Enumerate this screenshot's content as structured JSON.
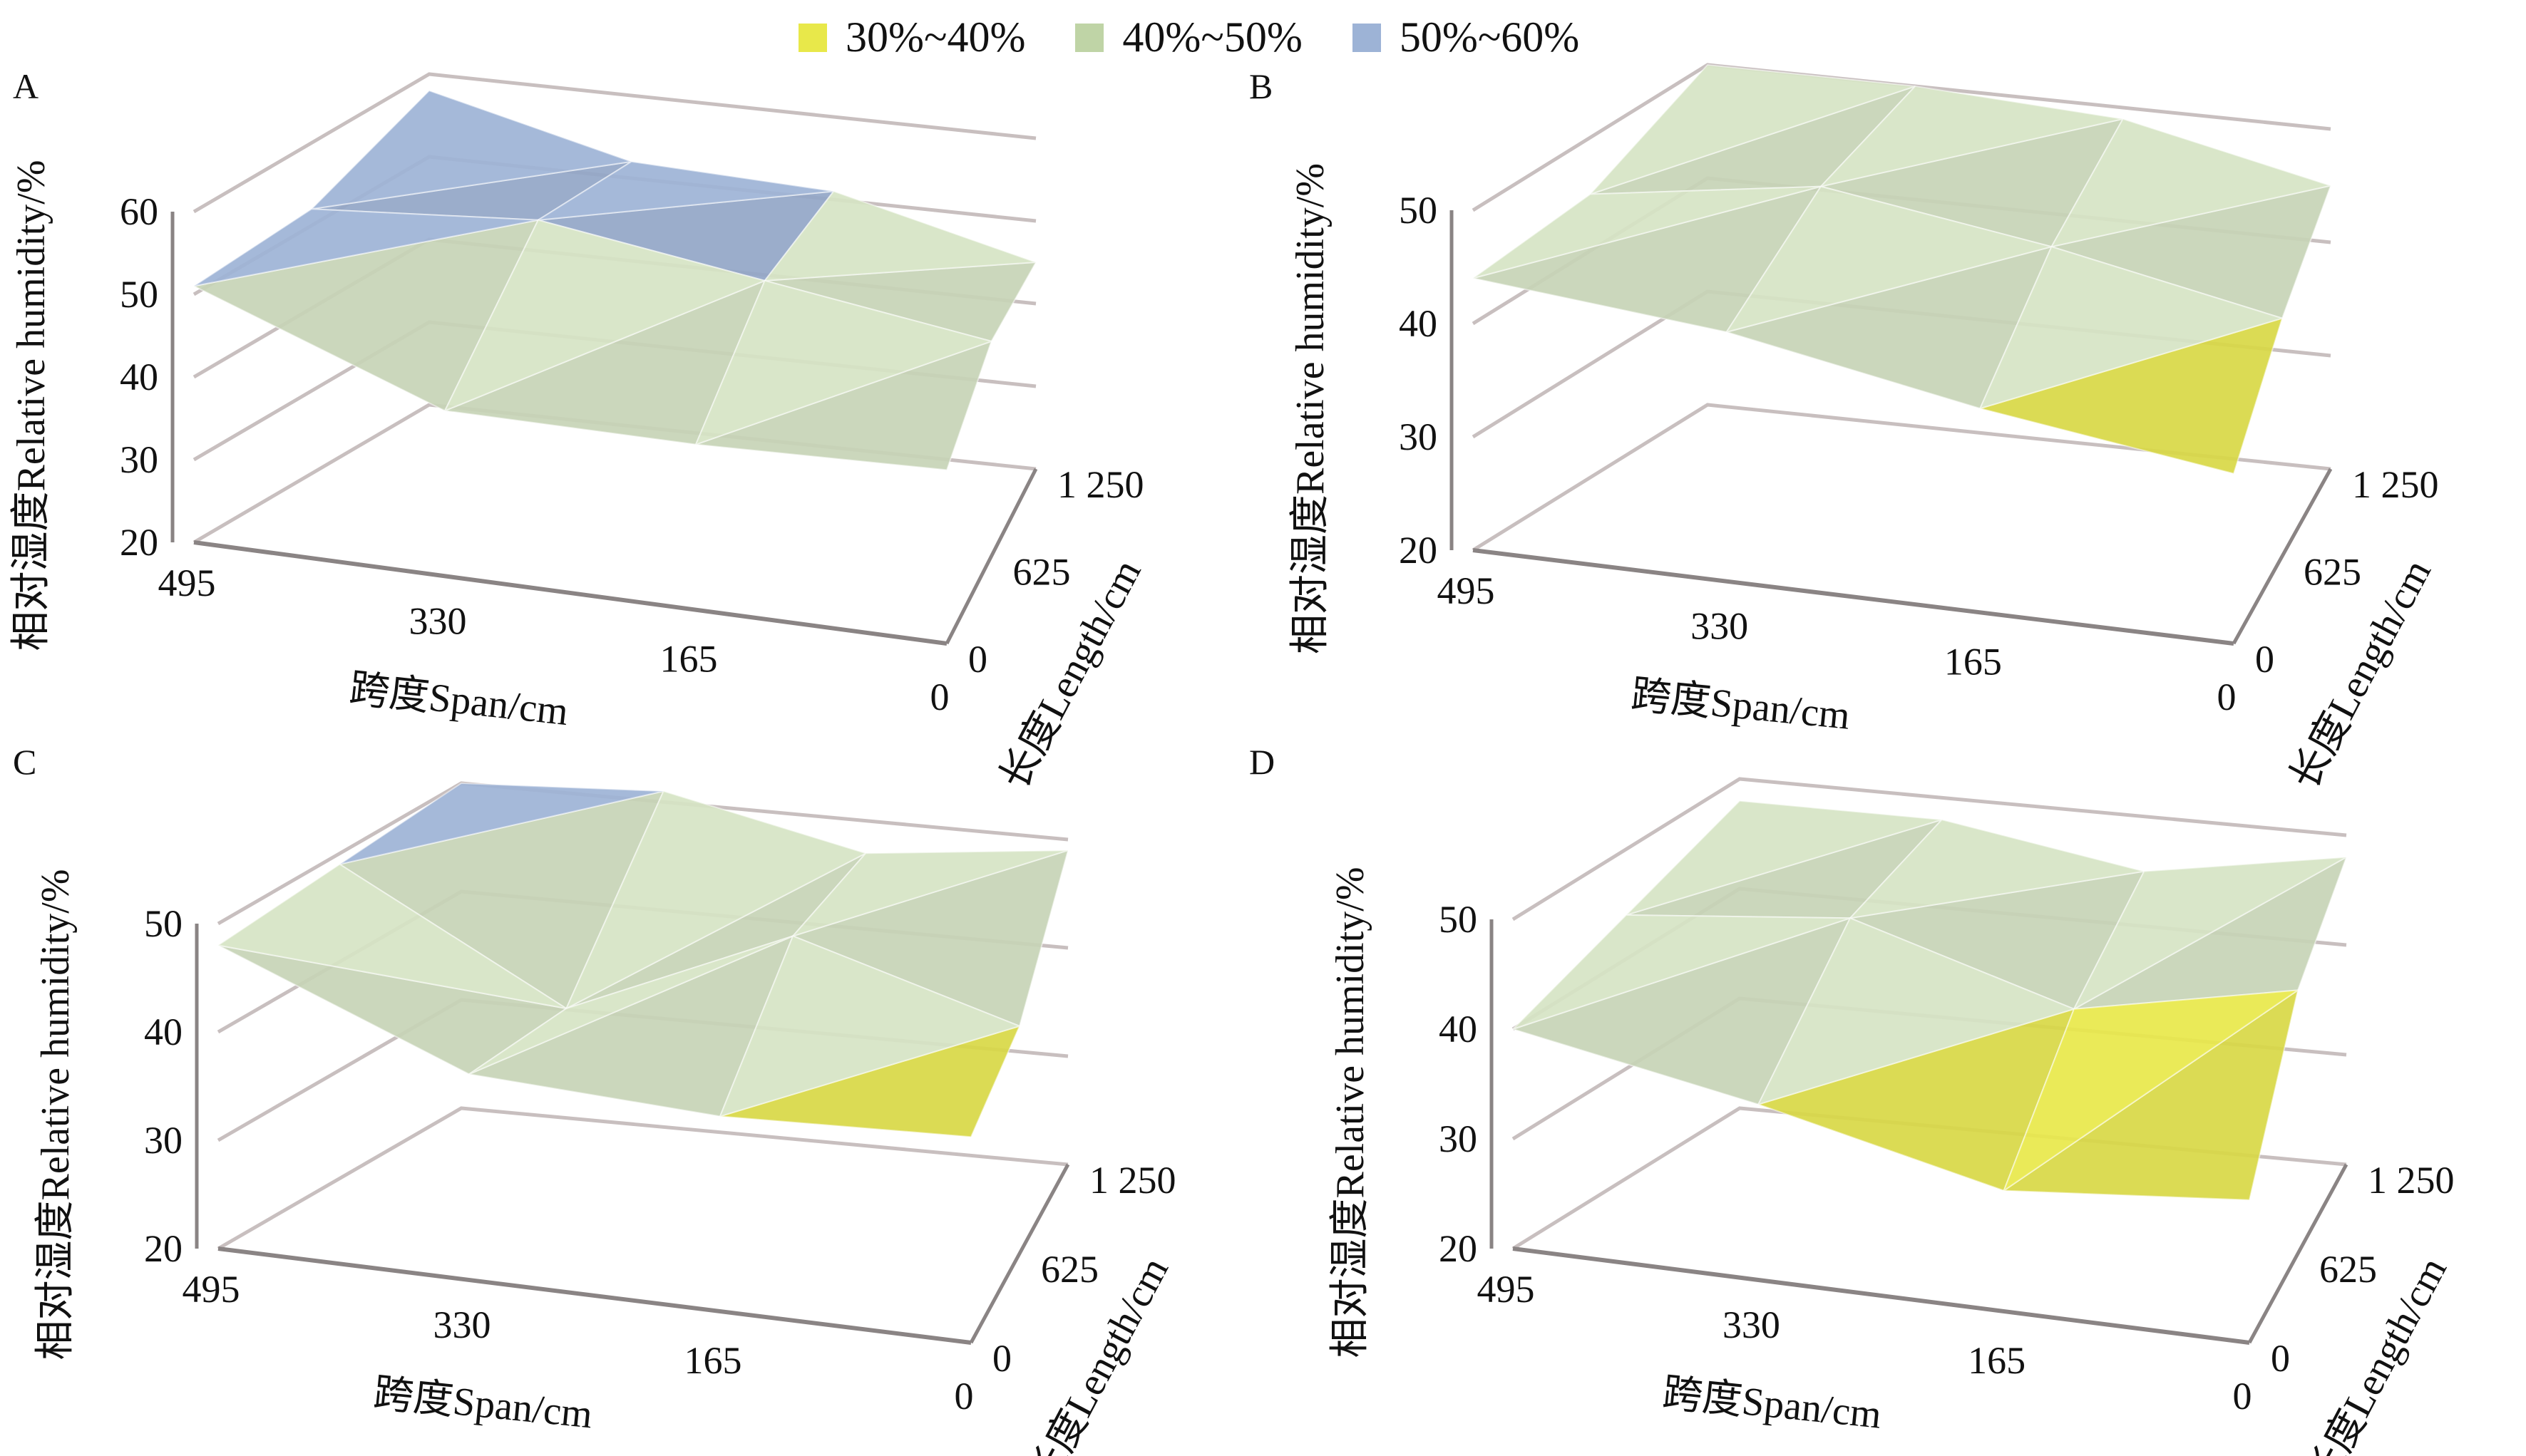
{
  "legend": [
    {
      "label": "30%~40%",
      "color": "#E8E84A",
      "min": 30,
      "max": 40
    },
    {
      "label": "40%~50%",
      "color": "#BFD4A6",
      "min": 40,
      "max": 50
    },
    {
      "label": "50%~60%",
      "color": "#9DB3D6",
      "min": 50,
      "max": 60
    }
  ],
  "chart_data": [
    {
      "panel": "A",
      "type": "surface3d",
      "title": "",
      "xlabel": "跨度Span/cm",
      "ylabel": "长度Length/cm",
      "zlabel": "相对湿度Relative humidity/%",
      "span_ticks": [
        "495",
        "330",
        "165",
        "0"
      ],
      "length_ticks": [
        "0",
        "625",
        "1 250"
      ],
      "z_ticks": [
        "20",
        "30",
        "40",
        "50",
        "60"
      ],
      "zlim": [
        20,
        60
      ],
      "span": [
        495,
        330,
        165,
        0
      ],
      "length": [
        0,
        625,
        1250
      ],
      "values": [
        [
          51,
          40,
          40,
          41
        ],
        [
          52,
          54,
          50,
          46
        ],
        [
          58,
          52,
          51,
          45
        ]
      ]
    },
    {
      "panel": "B",
      "type": "surface3d",
      "title": "",
      "xlabel": "跨度Span/cm",
      "ylabel": "长度Length/cm",
      "zlabel": "相对湿度Relative humidity/%",
      "span_ticks": [
        "495",
        "330",
        "165",
        "0"
      ],
      "length_ticks": [
        "0",
        "625",
        "1 250"
      ],
      "z_ticks": [
        "20",
        "30",
        "40",
        "50"
      ],
      "zlim": [
        20,
        50
      ],
      "span": [
        495,
        330,
        165,
        0
      ],
      "length": [
        0,
        625,
        1250
      ],
      "values": [
        [
          44,
          42,
          38,
          35
        ],
        [
          45,
          48,
          45,
          41
        ],
        [
          50,
          50,
          49,
          45
        ]
      ]
    },
    {
      "panel": "C",
      "type": "surface3d",
      "title": "",
      "xlabel": "跨度Span/cm",
      "ylabel": "长度Length/cm",
      "zlabel": "相对湿度Relative humidity/%",
      "span_ticks": [
        "495",
        "330",
        "165",
        "0"
      ],
      "length_ticks": [
        "0",
        "625",
        "1 250"
      ],
      "z_ticks": [
        "20",
        "30",
        "40",
        "50"
      ],
      "zlim": [
        20,
        50
      ],
      "span": [
        495,
        330,
        165,
        0
      ],
      "length": [
        0,
        625,
        1250
      ],
      "values": [
        [
          48,
          39,
          38,
          39
        ],
        [
          49,
          38,
          47,
          41
        ],
        [
          50,
          51,
          47,
          49
        ]
      ]
    },
    {
      "panel": "D",
      "type": "surface3d",
      "title": "",
      "xlabel": "跨度Span/cm",
      "ylabel": "长度Length/cm",
      "zlabel": "相对湿度Relative humidity/%",
      "span_ticks": [
        "495",
        "330",
        "165",
        "0"
      ],
      "length_ticks": [
        "0",
        "625",
        "1 250"
      ],
      "z_ticks": [
        "20",
        "30",
        "40",
        "50"
      ],
      "zlim": [
        20,
        50
      ],
      "span": [
        495,
        330,
        165,
        0
      ],
      "length": [
        0,
        625,
        1250
      ],
      "values": [
        [
          40,
          36,
          31,
          33
        ],
        [
          44,
          46,
          40,
          44
        ],
        [
          48,
          48,
          45,
          48
        ]
      ]
    }
  ]
}
